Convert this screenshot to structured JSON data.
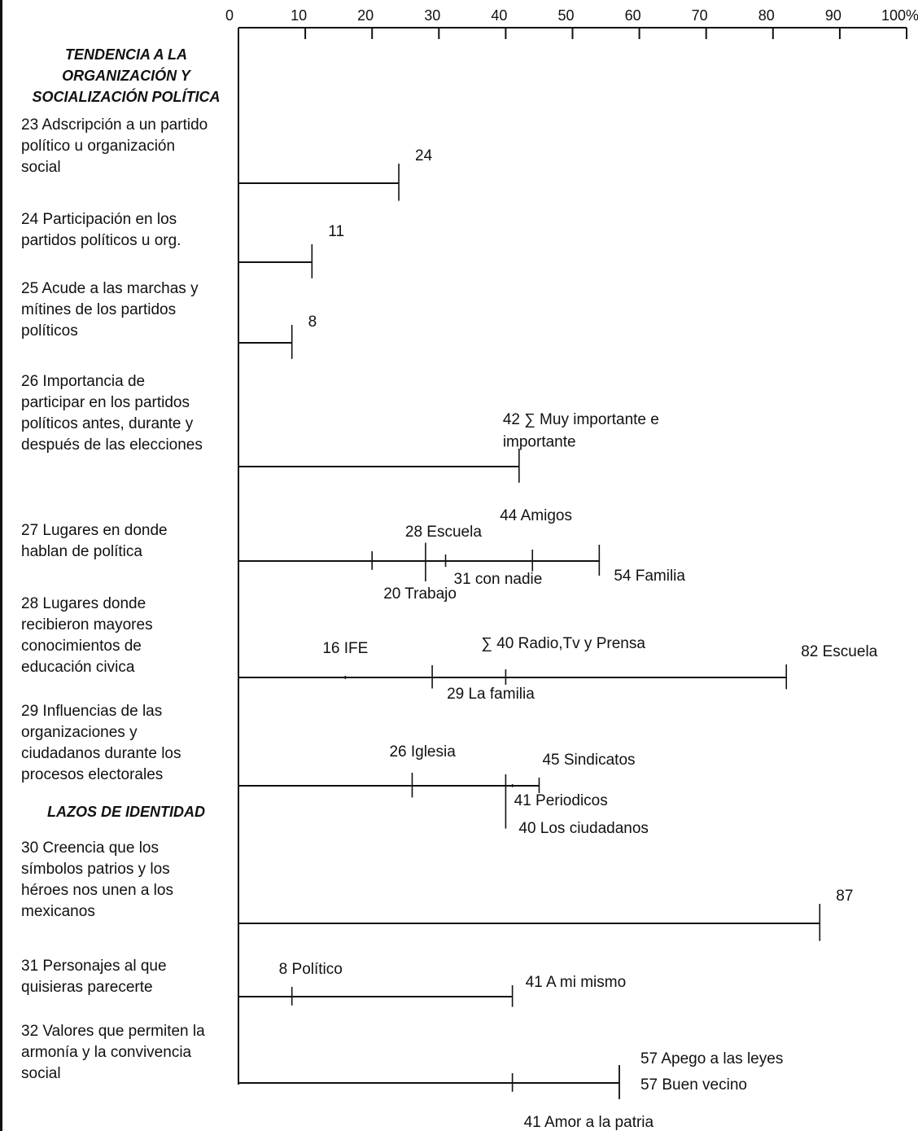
{
  "chart_data": {
    "type": "bar",
    "axis": {
      "ticks": [
        "0",
        "10",
        "20",
        "30",
        "40",
        "50",
        "60",
        "70",
        "80",
        "90",
        "100%"
      ],
      "xlim": [
        0,
        100
      ]
    },
    "sections": [
      {
        "title": "TENDENCIA A LA\nORGANIZACIÓN Y\nSOCIALIZACIÓN POLÍTICA"
      },
      {
        "title": "LAZOS DE IDENTIDAD"
      }
    ],
    "items": [
      {
        "label": "23 Adscripción a un partido\npolítico u organización\nsocial",
        "end": 24,
        "marks": [
          {
            "value": 24,
            "text": "24"
          }
        ]
      },
      {
        "label": "24 Participación en los\npartidos políticos u org.",
        "end": 11,
        "marks": [
          {
            "value": 11,
            "text": "11"
          }
        ]
      },
      {
        "label": "25 Acude a las marchas y\nmítines de los partidos\npolíticos",
        "end": 8,
        "marks": [
          {
            "value": 8,
            "text": "8"
          }
        ]
      },
      {
        "label": "26 Importancia de\nparticipar en los partidos\npolíticos antes, durante y\ndespués de las elecciones",
        "end": 42,
        "marks": [
          {
            "value": 42,
            "text": "42 ∑ Muy importante e\nimportante"
          }
        ]
      },
      {
        "label": "27  Lugares en donde\nhablan de política",
        "end": 54,
        "marks": [
          {
            "value": 20,
            "text": "20 Trabajo"
          },
          {
            "value": 28,
            "text": "28 Escuela"
          },
          {
            "value": 31,
            "text": "31 con  nadie"
          },
          {
            "value": 44,
            "text": "44 Amigos"
          },
          {
            "value": 54,
            "text": "54  Familia"
          }
        ]
      },
      {
        "label": "28 Lugares donde\nrecibieron mayores\nconocimientos de\neducación civica",
        "end": 82,
        "marks": [
          {
            "value": 16,
            "text": "16  IFE"
          },
          {
            "value": 29,
            "text": "29  La familia"
          },
          {
            "value": 40,
            "text": "∑ 40 Radio,Tv y Prensa"
          },
          {
            "value": 82,
            "text": "82  Escuela"
          }
        ]
      },
      {
        "label": "29  Influencias de las\norganizaciones y\nciudadanos durante los\nprocesos electorales",
        "end": 45,
        "marks": [
          {
            "value": 26,
            "text": "26  Iglesia"
          },
          {
            "value": 40,
            "text": "40  Los ciudadanos"
          },
          {
            "value": 41,
            "text": "41  Periodicos"
          },
          {
            "value": 45,
            "text": "45  Sindicatos"
          }
        ]
      },
      {
        "label": "30 Creencia que los\nsímbolos patrios y los\nhéroes nos unen a los\nmexicanos",
        "end": 87,
        "marks": [
          {
            "value": 87,
            "text": "87"
          }
        ]
      },
      {
        "label": "31 Personajes al que\nquisieras parecerte",
        "end": 41,
        "marks": [
          {
            "value": 8,
            "text": "8 Político"
          },
          {
            "value": 41,
            "text": "41 A mi  mismo"
          }
        ]
      },
      {
        "label": "32 Valores que permiten la\narmonía y la convivencia\nsocial",
        "end": 57,
        "marks": [
          {
            "value": 41,
            "text": "41 Amor a la patria"
          },
          {
            "value": 57,
            "text": "57  Apego a las leyes"
          },
          {
            "value": 57,
            "text": "57  Buen vecino"
          }
        ]
      }
    ]
  }
}
